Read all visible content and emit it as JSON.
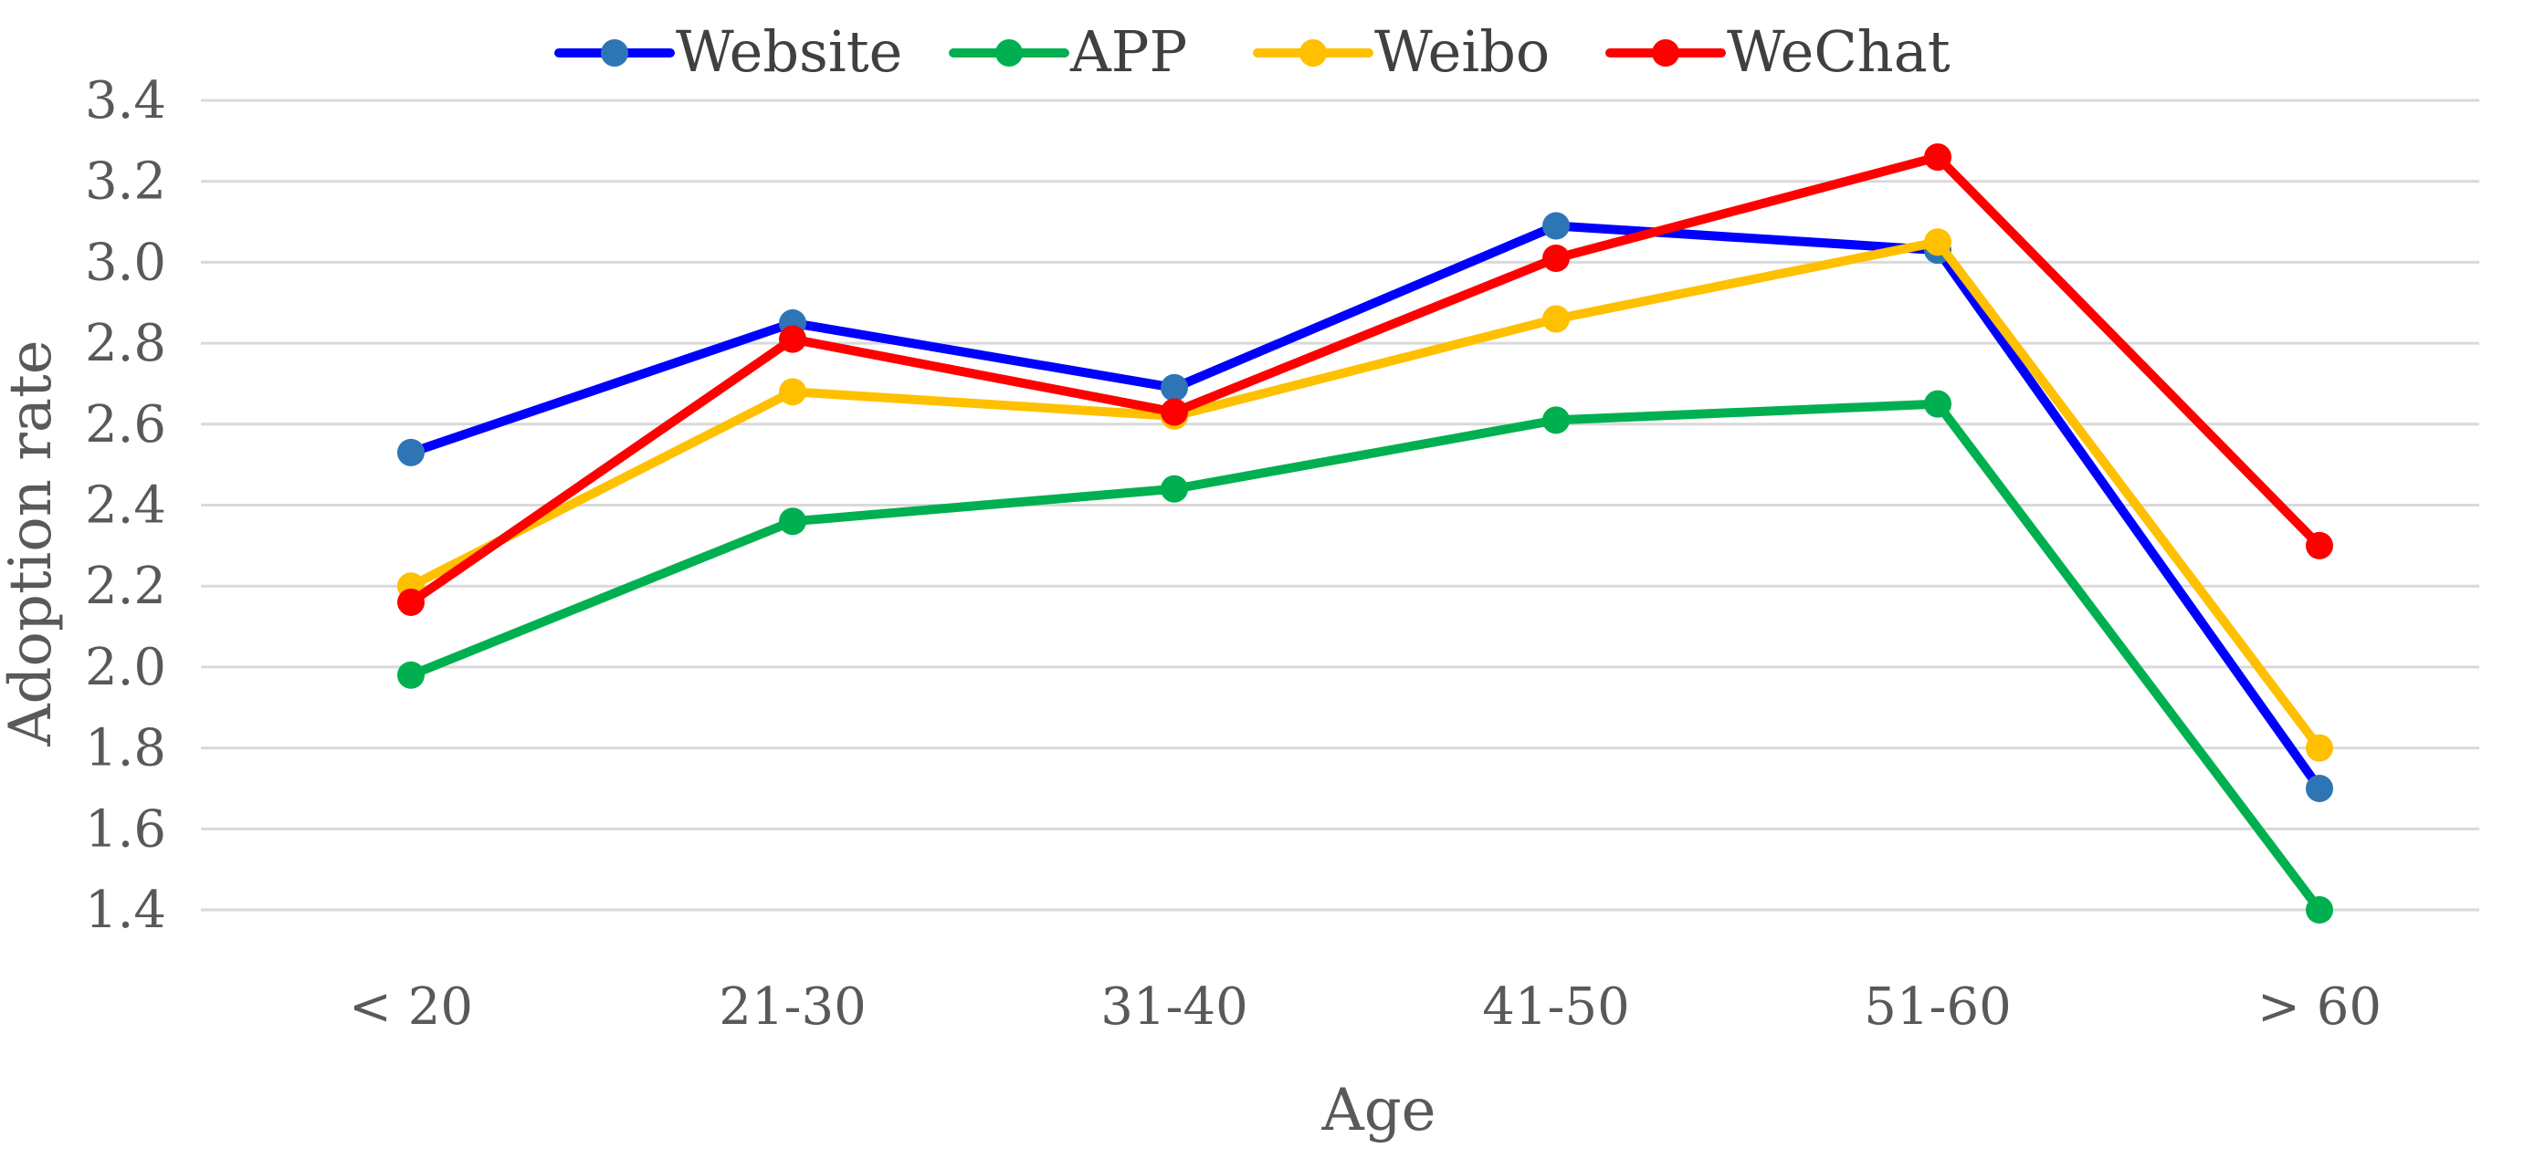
{
  "chart_data": {
    "type": "line",
    "title": "",
    "xlabel": "Age",
    "ylabel": "Adoption rate",
    "categories": [
      "< 20",
      "21-30",
      "31-40",
      "41-50",
      "51-60",
      "> 60"
    ],
    "ylim": [
      1.4,
      3.4
    ],
    "yticks": [
      "1.4",
      "1.6",
      "1.8",
      "2.0",
      "2.2",
      "2.4",
      "2.6",
      "2.8",
      "3.0",
      "3.2",
      "3.4"
    ],
    "grid": true,
    "legend_position": "top",
    "series": [
      {
        "name": "Website",
        "color": "#0000ff",
        "marker_color": "#2e75b6",
        "values": [
          2.53,
          2.85,
          2.69,
          3.09,
          3.03,
          1.7
        ]
      },
      {
        "name": "APP",
        "color": "#00b050",
        "marker_color": "#00b050",
        "values": [
          1.98,
          2.36,
          2.44,
          2.61,
          2.65,
          1.4
        ]
      },
      {
        "name": "Weibo",
        "color": "#ffc000",
        "marker_color": "#ffc000",
        "values": [
          2.2,
          2.68,
          2.62,
          2.86,
          3.05,
          1.8
        ]
      },
      {
        "name": "WeChat",
        "color": "#ff0000",
        "marker_color": "#ff0000",
        "values": [
          2.16,
          2.81,
          2.63,
          3.01,
          3.26,
          2.3
        ]
      }
    ]
  }
}
